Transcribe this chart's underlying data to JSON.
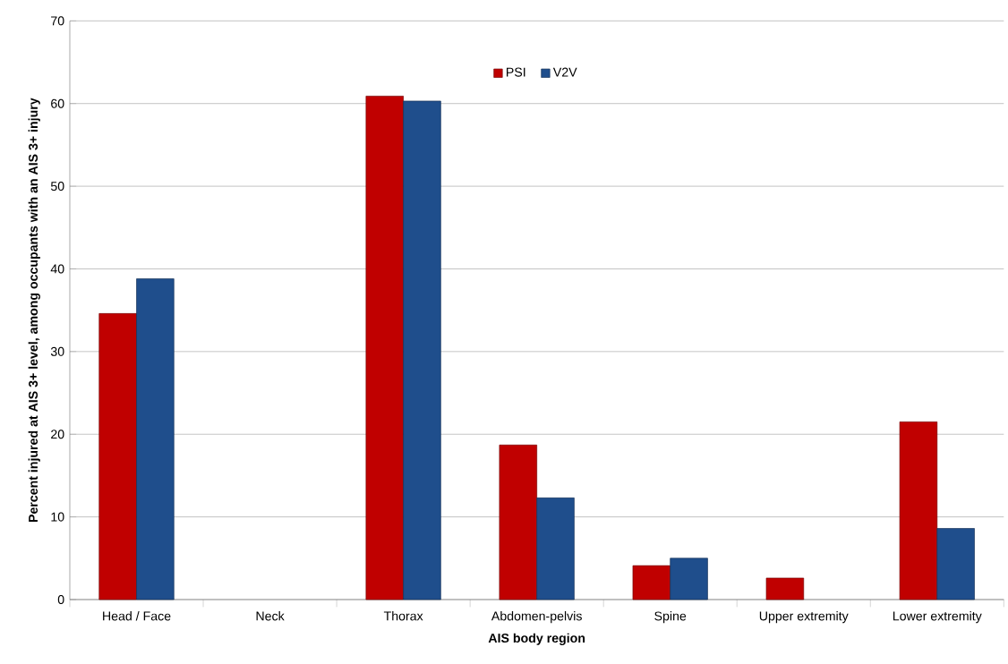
{
  "chart_data": {
    "type": "bar",
    "xlabel": "AIS body region",
    "ylabel": "Percent injured at AIS 3+ level, among occupants with an AIS 3+ injury",
    "categories": [
      "Head / Face",
      "Neck",
      "Thorax",
      "Abdomen-pelvis",
      "Spine",
      "Upper extremity",
      "Lower extremity"
    ],
    "series": [
      {
        "name": "PSI",
        "color": "#c00000",
        "values": [
          34.6,
          null,
          60.9,
          18.7,
          4.1,
          2.6,
          21.5
        ]
      },
      {
        "name": "V2V",
        "color": "#1f4e8c",
        "values": [
          38.8,
          null,
          60.3,
          12.3,
          5.0,
          null,
          8.6
        ]
      }
    ],
    "ylim": [
      0,
      70
    ],
    "yticks": [
      0,
      10,
      20,
      30,
      40,
      50,
      60,
      70
    ],
    "grid": "y",
    "legend": "top"
  }
}
